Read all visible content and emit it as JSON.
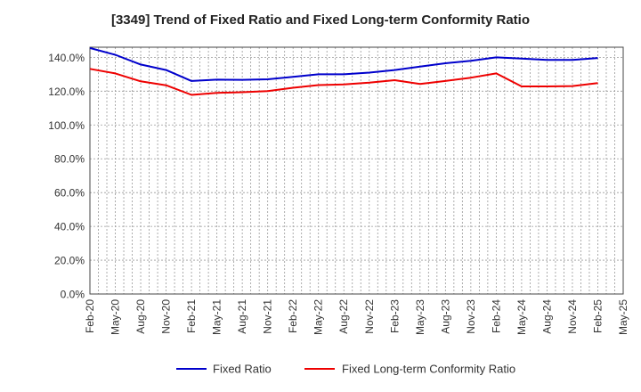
{
  "chart_data": {
    "type": "line",
    "title": "[3349]  Trend of Fixed Ratio and Fixed Long-term Conformity Ratio",
    "xlabel": "",
    "ylabel": "",
    "x_ticks": [
      "Feb-20",
      "May-20",
      "Aug-20",
      "Nov-20",
      "Feb-21",
      "May-21",
      "Aug-21",
      "Nov-21",
      "Feb-22",
      "May-22",
      "Aug-22",
      "Nov-22",
      "Feb-23",
      "May-23",
      "Aug-23",
      "Nov-23",
      "Feb-24",
      "May-24",
      "Aug-24",
      "Nov-24",
      "Feb-25",
      "May-25"
    ],
    "y_ticks": [
      "0.0%",
      "20.0%",
      "40.0%",
      "60.0%",
      "80.0%",
      "100.0%",
      "120.0%",
      "140.0%"
    ],
    "ylim": [
      0,
      146
    ],
    "grid": true,
    "legend_position": "bottom",
    "x": [
      "Feb-20",
      "May-20",
      "Aug-20",
      "Nov-20",
      "Feb-21",
      "May-21",
      "Aug-21",
      "Nov-21",
      "Feb-22",
      "May-22",
      "Aug-22",
      "Nov-22",
      "Feb-23",
      "May-23",
      "Aug-23",
      "Nov-23",
      "Feb-24",
      "May-24",
      "Aug-24",
      "Nov-24",
      "Feb-25"
    ],
    "series": [
      {
        "name": "Fixed Ratio",
        "color": "#0000cc",
        "values": [
          145.5,
          141.5,
          135.8,
          132.5,
          126.0,
          126.8,
          126.7,
          127.0,
          128.5,
          130.0,
          130.0,
          131.0,
          132.5,
          134.5,
          136.5,
          138.0,
          140.0,
          139.3,
          138.5,
          138.5,
          139.6
        ]
      },
      {
        "name": "Fixed Long-term Conformity Ratio",
        "color": "#ee0000",
        "values": [
          133.2,
          130.5,
          125.8,
          123.5,
          117.8,
          119.0,
          119.4,
          120.0,
          122.0,
          123.6,
          124.0,
          125.0,
          126.5,
          124.3,
          126.0,
          128.0,
          130.5,
          122.8,
          122.8,
          123.0,
          124.8
        ]
      }
    ]
  }
}
